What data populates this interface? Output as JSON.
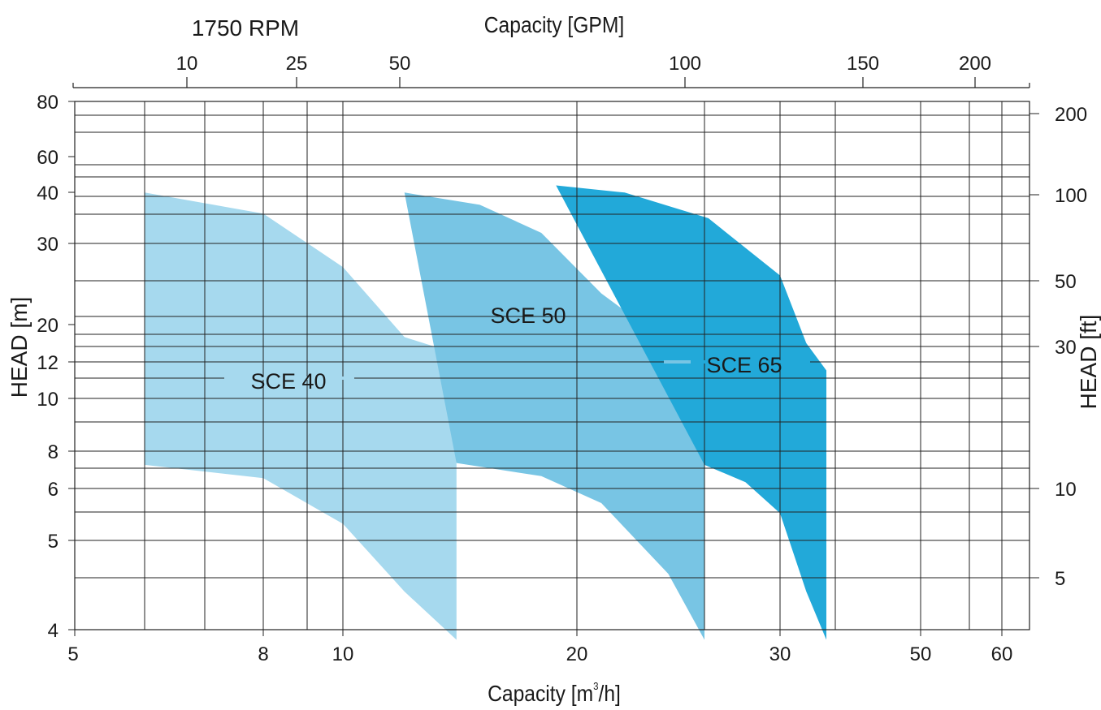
{
  "chart_data": {
    "type": "area",
    "rpm_label": "1750 RPM",
    "x_bottom_label": "Capacity  [m",
    "x_bottom_label_sup": "3",
    "x_bottom_label_tail": "/h]",
    "x_top_label": "Capacity  [GPM]",
    "y_left_label": "HEAD [m]",
    "y_right_label": "HEAD [ft]",
    "x_bottom_ticks": [
      "5",
      "8",
      "10",
      "20",
      "30",
      "50",
      "60"
    ],
    "x_top_ticks": [
      "10",
      "25",
      "50",
      "100",
      "150",
      "200"
    ],
    "y_left_ticks": [
      "80",
      "60",
      "40",
      "30",
      "20",
      "12",
      "10",
      "8",
      "6",
      "5",
      "4"
    ],
    "y_right_ticks": [
      "200",
      "100",
      "50",
      "30",
      "10",
      "5"
    ],
    "series": [
      {
        "name": "SCE 40",
        "color": "#a6d9ee",
        "upper": [
          [
            6.6,
            42
          ],
          [
            8,
            36
          ],
          [
            10,
            27
          ],
          [
            12,
            19
          ],
          [
            14,
            14
          ]
        ],
        "lower": [
          [
            6.6,
            7.2
          ],
          [
            8,
            6.5
          ],
          [
            10,
            5.3
          ],
          [
            12,
            4.4
          ],
          [
            14,
            3.9
          ]
        ]
      },
      {
        "name": "SCE 50",
        "color": "#78c5e4",
        "upper": [
          [
            12,
            42
          ],
          [
            15,
            38
          ],
          [
            18,
            32
          ],
          [
            21,
            24
          ],
          [
            24,
            17
          ],
          [
            25.8,
            14
          ]
        ],
        "lower": [
          [
            14,
            7.3
          ],
          [
            18,
            6.6
          ],
          [
            21,
            5.7
          ],
          [
            24,
            4.6
          ],
          [
            25.8,
            3.9
          ]
        ]
      },
      {
        "name": "SCE 65",
        "color": "#22a9d9",
        "upper": [
          [
            18.8,
            46
          ],
          [
            22,
            42
          ],
          [
            26,
            35
          ],
          [
            30,
            26
          ],
          [
            33,
            17
          ],
          [
            35.5,
            11.5
          ]
        ],
        "lower": [
          [
            25.8,
            7.2
          ],
          [
            28,
            6.3
          ],
          [
            30,
            5.5
          ],
          [
            33,
            4.4
          ],
          [
            35.5,
            3.9
          ]
        ]
      }
    ]
  }
}
